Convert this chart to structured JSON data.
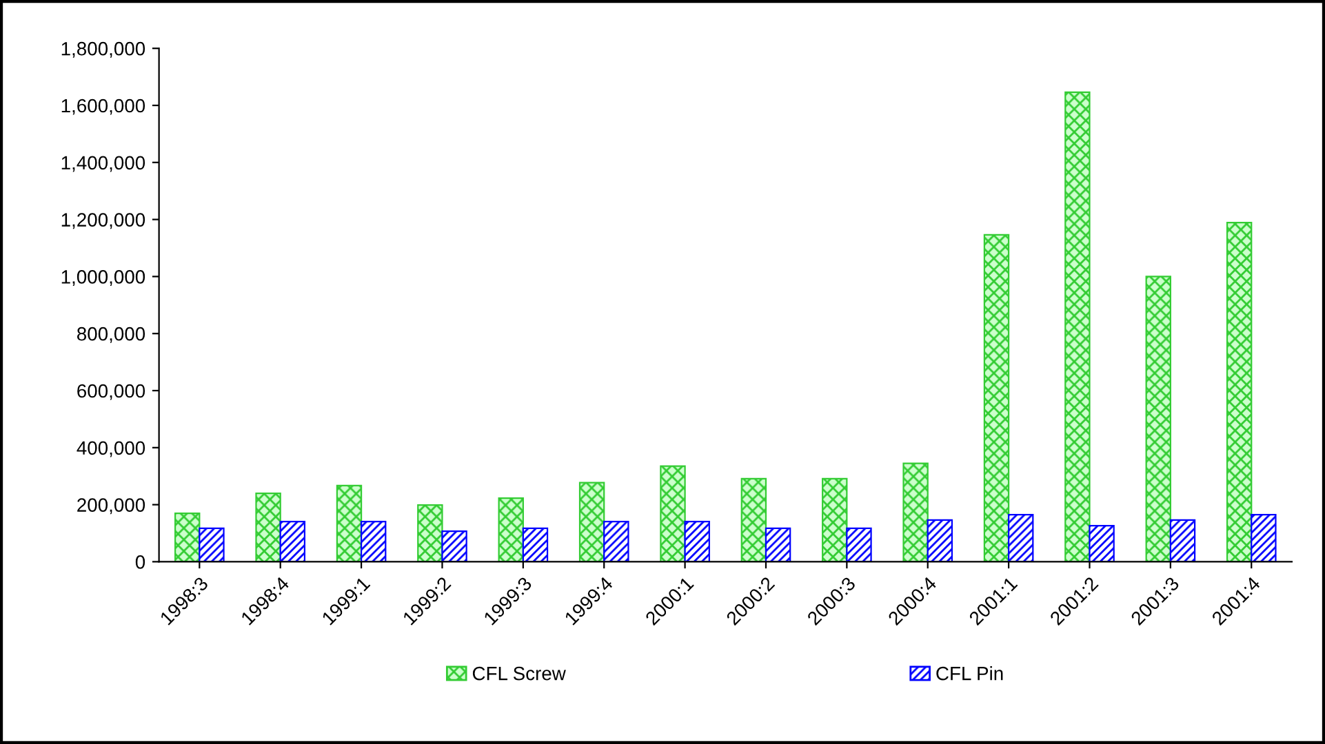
{
  "chart_data": {
    "type": "bar",
    "categories": [
      "1998:3",
      "1998:4",
      "1999:1",
      "1999:2",
      "1999:3",
      "1999:4",
      "2000:1",
      "2000:2",
      "2000:3",
      "2000:4",
      "2001:1",
      "2001:2",
      "2001:3",
      "2001:4"
    ],
    "series": [
      {
        "name": "CFL Screw",
        "color": "#33cc33",
        "values": [
          170000,
          240000,
          267000,
          199000,
          223000,
          277000,
          335000,
          291000,
          291000,
          345000,
          1146000,
          1646000,
          1000000,
          1189000
        ]
      },
      {
        "name": "CFL Pin",
        "color": "#0000ff",
        "values": [
          117000,
          141000,
          141000,
          107000,
          117000,
          141000,
          141000,
          117000,
          117000,
          146000,
          165000,
          126000,
          146000,
          165000
        ]
      }
    ],
    "ylim": [
      0,
      1800000
    ],
    "yticks": [
      0,
      {
        "value": 200000,
        "label": "200,000"
      },
      {
        "value": 400000,
        "label": "400,000"
      },
      {
        "value": 600000,
        "label": "600,000"
      },
      {
        "value": 800000,
        "label": "800,000"
      },
      {
        "value": 1000000,
        "label": "1,000,000"
      },
      {
        "value": 1200000,
        "label": "1,200,000"
      },
      {
        "value": 1400000,
        "label": "1,400,000"
      },
      {
        "value": 1600000,
        "label": "1,600,000"
      },
      {
        "value": 1800000,
        "label": "1,800,000"
      }
    ],
    "grid": false,
    "legend": "bottom"
  }
}
